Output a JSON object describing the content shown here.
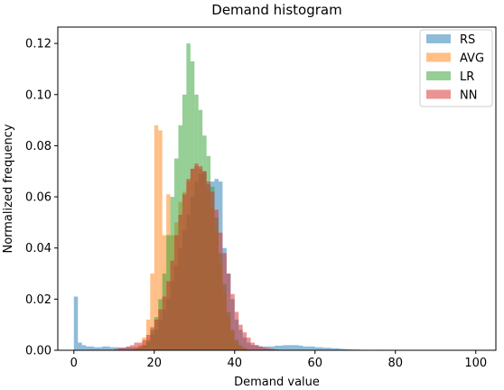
{
  "chart_data": {
    "type": "bar",
    "title": "Demand histogram",
    "xlabel": "Demand value",
    "ylabel": "Normalized frequency",
    "xlim": [
      -4,
      105
    ],
    "ylim": [
      0,
      0.1264
    ],
    "xticks": [
      0,
      20,
      40,
      60,
      80,
      100
    ],
    "yticks": [
      0.0,
      0.02,
      0.04,
      0.06,
      0.08,
      0.1,
      0.12
    ],
    "ytick_labels": [
      "0.00",
      "0.02",
      "0.04",
      "0.06",
      "0.08",
      "0.10",
      "0.12"
    ],
    "grid": false,
    "legend": "top-right",
    "bin_width": 1,
    "opacity": 0.5,
    "series": [
      {
        "name": "RS",
        "color": "#1f77b4",
        "bins": [
          [
            0,
            0.021
          ],
          [
            1,
            0.003
          ],
          [
            2,
            0.002
          ],
          [
            3,
            0.0015
          ],
          [
            4,
            0.0015
          ],
          [
            5,
            0.0012
          ],
          [
            6,
            0.0012
          ],
          [
            7,
            0.0015
          ],
          [
            8,
            0.0015
          ],
          [
            9,
            0.0012
          ],
          [
            10,
            0.0012
          ],
          [
            11,
            0.001
          ],
          [
            12,
            0.001
          ],
          [
            13,
            0.0012
          ],
          [
            14,
            0.0012
          ],
          [
            15,
            0.0012
          ],
          [
            16,
            0.0015
          ],
          [
            17,
            0.002
          ],
          [
            18,
            0.003
          ],
          [
            19,
            0.006
          ],
          [
            20,
            0.008
          ],
          [
            21,
            0.012
          ],
          [
            22,
            0.016
          ],
          [
            23,
            0.02
          ],
          [
            24,
            0.027
          ],
          [
            25,
            0.033
          ],
          [
            26,
            0.04
          ],
          [
            27,
            0.047
          ],
          [
            28,
            0.053
          ],
          [
            29,
            0.06
          ],
          [
            30,
            0.066
          ],
          [
            31,
            0.069
          ],
          [
            32,
            0.07
          ],
          [
            33,
            0.065
          ],
          [
            34,
            0.066
          ],
          [
            35,
            0.067
          ],
          [
            36,
            0.066
          ],
          [
            37,
            0.04
          ],
          [
            38,
            0.03
          ],
          [
            39,
            0.02
          ],
          [
            40,
            0.012
          ],
          [
            41,
            0.008
          ],
          [
            42,
            0.005
          ],
          [
            43,
            0.003
          ],
          [
            44,
            0.002
          ],
          [
            45,
            0.002
          ],
          [
            46,
            0.0015
          ],
          [
            47,
            0.0015
          ],
          [
            48,
            0.0015
          ],
          [
            49,
            0.0015
          ],
          [
            50,
            0.0018
          ],
          [
            51,
            0.0018
          ],
          [
            52,
            0.002
          ],
          [
            53,
            0.002
          ],
          [
            54,
            0.002
          ],
          [
            55,
            0.002
          ],
          [
            56,
            0.0018
          ],
          [
            57,
            0.0015
          ],
          [
            58,
            0.0015
          ],
          [
            59,
            0.0015
          ],
          [
            60,
            0.0012
          ],
          [
            61,
            0.0012
          ],
          [
            62,
            0.001
          ],
          [
            63,
            0.001
          ],
          [
            64,
            0.0008
          ],
          [
            65,
            0.0008
          ],
          [
            66,
            0.0006
          ],
          [
            67,
            0.0005
          ],
          [
            68,
            0.0004
          ],
          [
            69,
            0.0003
          ],
          [
            70,
            0.0003
          ],
          [
            71,
            0.0002
          ],
          [
            72,
            0.0002
          ],
          [
            75,
            0.0002
          ],
          [
            76,
            0.0002
          ]
        ]
      },
      {
        "name": "AVG",
        "color": "#ff7f0e",
        "bins": [
          [
            14,
            0.0005
          ],
          [
            15,
            0.001
          ],
          [
            16,
            0.002
          ],
          [
            17,
            0.005
          ],
          [
            18,
            0.012
          ],
          [
            19,
            0.03
          ],
          [
            20,
            0.088
          ],
          [
            21,
            0.086
          ],
          [
            22,
            0.045
          ],
          [
            23,
            0.061
          ],
          [
            24,
            0.045
          ],
          [
            25,
            0.05
          ],
          [
            26,
            0.058
          ],
          [
            27,
            0.062
          ],
          [
            28,
            0.066
          ],
          [
            29,
            0.071
          ],
          [
            30,
            0.072
          ],
          [
            31,
            0.071
          ],
          [
            32,
            0.069
          ],
          [
            33,
            0.063
          ],
          [
            34,
            0.056
          ],
          [
            35,
            0.047
          ],
          [
            36,
            0.034
          ],
          [
            37,
            0.022
          ],
          [
            38,
            0.013
          ],
          [
            39,
            0.007
          ],
          [
            40,
            0.003
          ],
          [
            41,
            0.0015
          ],
          [
            42,
            0.0008
          ],
          [
            43,
            0.0004
          ]
        ]
      },
      {
        "name": "LR",
        "color": "#2ca02c",
        "bins": [
          [
            15,
            0.0005
          ],
          [
            16,
            0.001
          ],
          [
            17,
            0.002
          ],
          [
            18,
            0.004
          ],
          [
            19,
            0.008
          ],
          [
            20,
            0.013
          ],
          [
            21,
            0.02
          ],
          [
            22,
            0.03
          ],
          [
            23,
            0.045
          ],
          [
            24,
            0.06
          ],
          [
            25,
            0.075
          ],
          [
            26,
            0.088
          ],
          [
            27,
            0.1
          ],
          [
            28,
            0.12
          ],
          [
            29,
            0.113
          ],
          [
            30,
            0.1
          ],
          [
            31,
            0.094
          ],
          [
            32,
            0.084
          ],
          [
            33,
            0.076
          ],
          [
            34,
            0.064
          ],
          [
            35,
            0.052
          ],
          [
            36,
            0.038
          ],
          [
            37,
            0.026
          ],
          [
            38,
            0.015
          ],
          [
            39,
            0.008
          ],
          [
            40,
            0.004
          ],
          [
            41,
            0.002
          ],
          [
            42,
            0.001
          ]
        ]
      },
      {
        "name": "NN",
        "color": "#d62728",
        "bins": [
          [
            10,
            0.0005
          ],
          [
            11,
            0.001
          ],
          [
            12,
            0.001
          ],
          [
            13,
            0.0015
          ],
          [
            14,
            0.002
          ],
          [
            15,
            0.003
          ],
          [
            16,
            0.003
          ],
          [
            17,
            0.004
          ],
          [
            18,
            0.006
          ],
          [
            19,
            0.009
          ],
          [
            20,
            0.012
          ],
          [
            21,
            0.016
          ],
          [
            22,
            0.021
          ],
          [
            23,
            0.027
          ],
          [
            24,
            0.035
          ],
          [
            25,
            0.045
          ],
          [
            26,
            0.053
          ],
          [
            27,
            0.061
          ],
          [
            28,
            0.067
          ],
          [
            29,
            0.071
          ],
          [
            30,
            0.073
          ],
          [
            31,
            0.072
          ],
          [
            32,
            0.07
          ],
          [
            33,
            0.066
          ],
          [
            34,
            0.062
          ],
          [
            35,
            0.055
          ],
          [
            36,
            0.046
          ],
          [
            37,
            0.038
          ],
          [
            38,
            0.03
          ],
          [
            39,
            0.022
          ],
          [
            40,
            0.015
          ],
          [
            41,
            0.01
          ],
          [
            42,
            0.007
          ],
          [
            43,
            0.005
          ],
          [
            44,
            0.003
          ],
          [
            45,
            0.002
          ],
          [
            46,
            0.0015
          ],
          [
            47,
            0.001
          ],
          [
            48,
            0.0008
          ],
          [
            49,
            0.0005
          ],
          [
            50,
            0.0003
          ]
        ]
      }
    ]
  }
}
